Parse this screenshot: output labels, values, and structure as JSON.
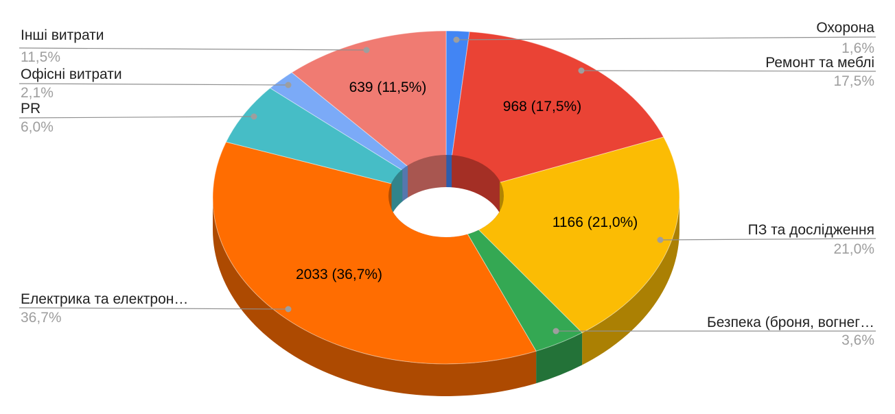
{
  "chart_data": {
    "type": "pie",
    "style": "3d-donut",
    "title": "",
    "legend_position": "callout-labels",
    "percent_decimal_separator": ",",
    "slices": [
      {
        "id": "okhorona",
        "label": "Охорона",
        "percent": 1.6,
        "pct_label": "1,6%",
        "value": null,
        "data_label": null,
        "color": "#4285F4"
      },
      {
        "id": "remont",
        "label": "Ремонт та меблі",
        "percent": 17.5,
        "pct_label": "17,5%",
        "value": 968,
        "data_label": "968 (17,5%)",
        "color": "#EA4335"
      },
      {
        "id": "pz",
        "label": "ПЗ та дослідження",
        "percent": 21.0,
        "pct_label": "21,0%",
        "value": 1166,
        "data_label": "1166 (21,0%)",
        "color": "#FBBC04"
      },
      {
        "id": "bezpeka",
        "label": "Безпека (броня, вогнег…",
        "percent": 3.6,
        "pct_label": "3,6%",
        "value": null,
        "data_label": null,
        "color": "#34A853"
      },
      {
        "id": "elektrika",
        "label": "Електрика та електрон…",
        "percent": 36.7,
        "pct_label": "36,7%",
        "value": 2033,
        "data_label": "2033 (36,7%)",
        "color": "#FF6D01"
      },
      {
        "id": "pr",
        "label": "PR",
        "percent": 6.0,
        "pct_label": "6,0%",
        "value": null,
        "data_label": null,
        "color": "#46BDC6"
      },
      {
        "id": "ofisni",
        "label": "Офісні витрати",
        "percent": 2.1,
        "pct_label": "2,1%",
        "value": null,
        "data_label": null,
        "color": "#7BAAF7"
      },
      {
        "id": "inshi",
        "label": "Інші витрати",
        "percent": 11.5,
        "pct_label": "11,5%",
        "value": 639,
        "data_label": "639 (11,5%)",
        "color": "#F07B72"
      }
    ]
  }
}
